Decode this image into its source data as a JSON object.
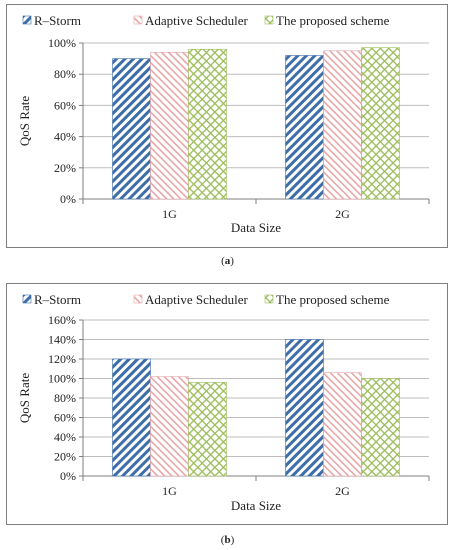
{
  "colors": {
    "rstorm": "#3e6ea8",
    "adaptive": "#e6a7a9",
    "proposed": "#9bbb59"
  },
  "captions": {
    "a": "a",
    "b": "b"
  },
  "chart_data": [
    {
      "type": "bar",
      "categories": [
        "1G",
        "2G"
      ],
      "series": [
        {
          "name": "R–Storm",
          "values": [
            90,
            92
          ],
          "pattern": "diagonal-hatch"
        },
        {
          "name": "Adaptive Scheduler",
          "values": [
            94,
            95
          ],
          "pattern": "light-diagonal-hatch"
        },
        {
          "name": "The proposed scheme",
          "values": [
            96,
            97
          ],
          "pattern": "crosshatch"
        }
      ],
      "xlabel": "Data Size",
      "ylabel": "QoS Rate",
      "ylim": [
        0,
        100
      ],
      "yticks": [
        "0%",
        "20%",
        "40%",
        "60%",
        "80%",
        "100%"
      ],
      "legend": "top",
      "grid": true
    },
    {
      "type": "bar",
      "categories": [
        "1G",
        "2G"
      ],
      "series": [
        {
          "name": "R–Storm",
          "values": [
            120,
            140
          ],
          "pattern": "diagonal-hatch"
        },
        {
          "name": "Adaptive Scheduler",
          "values": [
            102,
            106
          ],
          "pattern": "light-diagonal-hatch"
        },
        {
          "name": "The proposed scheme",
          "values": [
            96,
            100
          ],
          "pattern": "crosshatch"
        }
      ],
      "xlabel": "Data Size",
      "ylabel": "QoS Rate",
      "ylim": [
        0,
        160
      ],
      "yticks": [
        "0%",
        "20%",
        "40%",
        "60%",
        "80%",
        "100%",
        "120%",
        "140%",
        "160%"
      ],
      "legend": "top",
      "grid": true
    }
  ]
}
